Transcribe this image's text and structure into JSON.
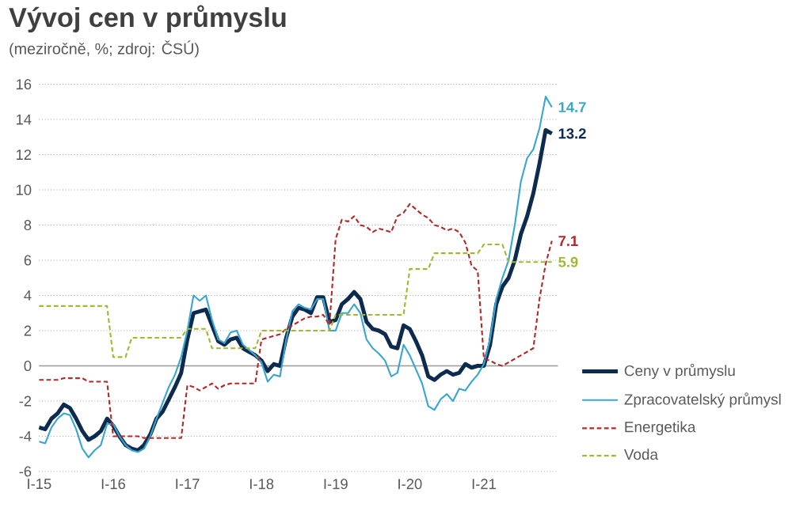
{
  "chart_data": {
    "type": "line",
    "title": "Vývoj cen v průmyslu",
    "subtitle": "(meziročně, %; zdroj: ČSÚ)",
    "x": [
      "2015-01",
      "2015-02",
      "2015-03",
      "2015-04",
      "2015-05",
      "2015-06",
      "2015-07",
      "2015-08",
      "2015-09",
      "2015-10",
      "2015-11",
      "2015-12",
      "2016-01",
      "2016-02",
      "2016-03",
      "2016-04",
      "2016-05",
      "2016-06",
      "2016-07",
      "2016-08",
      "2016-09",
      "2016-10",
      "2016-11",
      "2016-12",
      "2017-01",
      "2017-02",
      "2017-03",
      "2017-04",
      "2017-05",
      "2017-06",
      "2017-07",
      "2017-08",
      "2017-09",
      "2017-10",
      "2017-11",
      "2017-12",
      "2018-01",
      "2018-02",
      "2018-03",
      "2018-04",
      "2018-05",
      "2018-06",
      "2018-07",
      "2018-08",
      "2018-09",
      "2018-10",
      "2018-11",
      "2018-12",
      "2019-01",
      "2019-02",
      "2019-03",
      "2019-04",
      "2019-05",
      "2019-06",
      "2019-07",
      "2019-08",
      "2019-09",
      "2019-10",
      "2019-11",
      "2019-12",
      "2020-01",
      "2020-02",
      "2020-03",
      "2020-04",
      "2020-05",
      "2020-06",
      "2020-07",
      "2020-08",
      "2020-09",
      "2020-10",
      "2020-11",
      "2020-12",
      "2021-01",
      "2021-02",
      "2021-03",
      "2021-04",
      "2021-05",
      "2021-06",
      "2021-07",
      "2021-08",
      "2021-09",
      "2021-10",
      "2021-11",
      "2021-12"
    ],
    "xlim": [
      "2015-01",
      "2022-01"
    ],
    "xticks": [
      {
        "value": "2015-01",
        "label": "I-15"
      },
      {
        "value": "2016-01",
        "label": "I-16"
      },
      {
        "value": "2017-01",
        "label": "I-17"
      },
      {
        "value": "2018-01",
        "label": "I-18"
      },
      {
        "value": "2019-01",
        "label": "I-19"
      },
      {
        "value": "2020-01",
        "label": "I-20"
      },
      {
        "value": "2021-01",
        "label": "I-21"
      }
    ],
    "ylim": [
      -6,
      16
    ],
    "yticks": [
      -6,
      -4,
      -2,
      0,
      2,
      4,
      6,
      8,
      10,
      12,
      14,
      16
    ],
    "grid": "y",
    "legend": "bottom right",
    "marker": "none",
    "series": [
      {
        "name": "Ceny v průmyslu",
        "color": "#0d2a4f",
        "line_style": "solid",
        "values": [
          -3.5,
          -3.6,
          -3.0,
          -2.7,
          -2.2,
          -2.4,
          -3.0,
          -3.7,
          -4.2,
          -4.0,
          -3.7,
          -3.0,
          -3.4,
          -4.0,
          -4.5,
          -4.7,
          -4.8,
          -4.5,
          -3.9,
          -3.0,
          -2.6,
          -1.9,
          -1.2,
          -0.4,
          1.5,
          3.0,
          3.1,
          3.2,
          2.3,
          1.4,
          1.2,
          1.5,
          1.6,
          1.0,
          0.8,
          0.6,
          0.3,
          -0.3,
          0.1,
          0.0,
          1.6,
          2.8,
          3.3,
          3.2,
          3.0,
          3.9,
          3.9,
          2.5,
          2.6,
          3.5,
          3.8,
          4.2,
          3.8,
          2.5,
          2.1,
          2.0,
          1.8,
          1.1,
          1.0,
          2.3,
          2.1,
          1.4,
          0.6,
          -0.6,
          -0.8,
          -0.5,
          -0.3,
          -0.5,
          -0.4,
          0.1,
          -0.1,
          0.0,
          0.0,
          1.2,
          3.5,
          4.5,
          5.0,
          6.0,
          7.5,
          8.5,
          9.8,
          11.5,
          13.4,
          13.2
        ],
        "value_labels": [
          null,
          null,
          null,
          null,
          null,
          null,
          null,
          null,
          null,
          null,
          null,
          null,
          null,
          null,
          null,
          null,
          null,
          null,
          null,
          null,
          null,
          null,
          null,
          null,
          null,
          null,
          null,
          null,
          null,
          null,
          null,
          null,
          null,
          null,
          null,
          null,
          null,
          null,
          null,
          null,
          null,
          null,
          null,
          null,
          null,
          null,
          null,
          null,
          null,
          null,
          null,
          null,
          null,
          null,
          null,
          null,
          null,
          null,
          null,
          null,
          null,
          null,
          null,
          null,
          null,
          null,
          null,
          null,
          null,
          null,
          null,
          null,
          null,
          null,
          null,
          null,
          null,
          null,
          null,
          null,
          null,
          null,
          null,
          "13.2"
        ]
      },
      {
        "name": "Zpracovatelský průmysl",
        "color": "#3aa6d0",
        "line_style": "solid",
        "values": [
          -4.3,
          -4.4,
          -3.5,
          -3.0,
          -2.7,
          -2.8,
          -3.6,
          -4.7,
          -5.2,
          -4.8,
          -4.5,
          -3.3,
          -3.3,
          -4.0,
          -4.5,
          -4.8,
          -4.9,
          -4.7,
          -4.0,
          -3.0,
          -2.1,
          -1.2,
          -0.5,
          0.5,
          2.0,
          4.0,
          3.7,
          4.0,
          2.6,
          1.5,
          1.3,
          1.9,
          2.0,
          1.2,
          0.9,
          0.6,
          0.2,
          -0.9,
          -0.5,
          -0.6,
          1.5,
          3.1,
          3.5,
          3.3,
          3.2,
          3.8,
          3.8,
          2.0,
          2.0,
          3.0,
          3.0,
          3.5,
          3.0,
          1.5,
          1.0,
          0.7,
          0.3,
          -0.6,
          -0.4,
          1.2,
          0.6,
          -0.2,
          -1.0,
          -2.3,
          -2.5,
          -1.9,
          -1.6,
          -2.0,
          -1.3,
          -1.4,
          -0.9,
          -0.5,
          0.1,
          1.5,
          3.8,
          5.0,
          6.0,
          8.0,
          10.5,
          11.8,
          12.3,
          13.5,
          15.3,
          14.7
        ],
        "value_labels": [
          null,
          null,
          null,
          null,
          null,
          null,
          null,
          null,
          null,
          null,
          null,
          null,
          null,
          null,
          null,
          null,
          null,
          null,
          null,
          null,
          null,
          null,
          null,
          null,
          null,
          null,
          null,
          null,
          null,
          null,
          null,
          null,
          null,
          null,
          null,
          null,
          null,
          null,
          null,
          null,
          null,
          null,
          null,
          null,
          null,
          null,
          null,
          null,
          null,
          null,
          null,
          null,
          null,
          null,
          null,
          null,
          null,
          null,
          null,
          null,
          null,
          null,
          null,
          null,
          null,
          null,
          null,
          null,
          null,
          null,
          null,
          null,
          null,
          null,
          null,
          null,
          null,
          null,
          null,
          null,
          null,
          null,
          null,
          "14.7"
        ]
      },
      {
        "name": "Energetika",
        "color": "#b22a2a",
        "line_style": "dashed",
        "values": [
          -0.8,
          -0.8,
          -0.8,
          -0.8,
          -0.7,
          -0.7,
          -0.7,
          -0.7,
          -0.9,
          -0.9,
          -0.9,
          -0.9,
          -4.0,
          -4.0,
          -4.0,
          -4.0,
          -4.0,
          -4.1,
          -4.1,
          -4.1,
          -4.1,
          -4.1,
          -4.1,
          -4.1,
          -1.1,
          -1.2,
          -1.4,
          -1.2,
          -1.0,
          -1.3,
          -1.1,
          -1.0,
          -1.0,
          -1.0,
          -1.0,
          -1.0,
          1.5,
          1.6,
          1.7,
          1.8,
          2.1,
          2.3,
          2.5,
          2.7,
          2.8,
          2.8,
          2.9,
          2.3,
          7.2,
          8.3,
          8.2,
          8.5,
          8.0,
          7.9,
          7.6,
          7.8,
          7.7,
          7.6,
          8.5,
          8.7,
          9.2,
          8.9,
          8.6,
          8.4,
          8.0,
          7.9,
          7.7,
          7.8,
          7.6,
          7.0,
          5.7,
          5.4,
          0.4,
          0.3,
          0.1,
          0.0,
          0.2,
          0.4,
          0.6,
          0.8,
          1.0,
          3.8,
          5.8,
          7.1
        ],
        "value_labels": [
          null,
          null,
          null,
          null,
          null,
          null,
          null,
          null,
          null,
          null,
          null,
          null,
          null,
          null,
          null,
          null,
          null,
          null,
          null,
          null,
          null,
          null,
          null,
          null,
          null,
          null,
          null,
          null,
          null,
          null,
          null,
          null,
          null,
          null,
          null,
          null,
          null,
          null,
          null,
          null,
          null,
          null,
          null,
          null,
          null,
          null,
          null,
          null,
          null,
          null,
          null,
          null,
          null,
          null,
          null,
          null,
          null,
          null,
          null,
          null,
          null,
          null,
          null,
          null,
          null,
          null,
          null,
          null,
          null,
          null,
          null,
          null,
          null,
          null,
          null,
          null,
          null,
          null,
          null,
          null,
          null,
          null,
          null,
          "7.1"
        ]
      },
      {
        "name": "Voda",
        "color": "#a2b832",
        "line_style": "dashed",
        "values": [
          3.4,
          3.4,
          3.4,
          3.4,
          3.4,
          3.4,
          3.4,
          3.4,
          3.4,
          3.4,
          3.4,
          3.4,
          0.5,
          0.5,
          0.5,
          1.6,
          1.6,
          1.6,
          1.6,
          1.6,
          1.6,
          1.6,
          1.6,
          1.6,
          2.1,
          2.1,
          2.1,
          2.1,
          1.0,
          1.0,
          1.0,
          1.0,
          1.0,
          1.0,
          1.0,
          1.0,
          2.0,
          2.0,
          2.0,
          2.0,
          2.0,
          2.0,
          2.0,
          2.0,
          2.0,
          2.0,
          2.0,
          2.0,
          2.9,
          2.9,
          2.9,
          2.9,
          2.9,
          2.9,
          2.9,
          2.9,
          2.9,
          2.9,
          2.9,
          2.9,
          5.5,
          5.5,
          5.5,
          5.5,
          6.4,
          6.4,
          6.4,
          6.4,
          6.4,
          6.4,
          6.4,
          6.4,
          6.9,
          6.9,
          6.9,
          6.9,
          5.9,
          5.9,
          5.9,
          5.9,
          5.9,
          5.9,
          5.9,
          5.9
        ],
        "value_labels": [
          null,
          null,
          null,
          null,
          null,
          null,
          null,
          null,
          null,
          null,
          null,
          null,
          null,
          null,
          null,
          null,
          null,
          null,
          null,
          null,
          null,
          null,
          null,
          null,
          null,
          null,
          null,
          null,
          null,
          null,
          null,
          null,
          null,
          null,
          null,
          null,
          null,
          null,
          null,
          null,
          null,
          null,
          null,
          null,
          null,
          null,
          null,
          null,
          null,
          null,
          null,
          null,
          null,
          null,
          null,
          null,
          null,
          null,
          null,
          null,
          null,
          null,
          null,
          null,
          null,
          null,
          null,
          null,
          null,
          null,
          null,
          null,
          null,
          null,
          null,
          null,
          null,
          null,
          null,
          null,
          null,
          null,
          null,
          "5.9"
        ]
      }
    ]
  }
}
